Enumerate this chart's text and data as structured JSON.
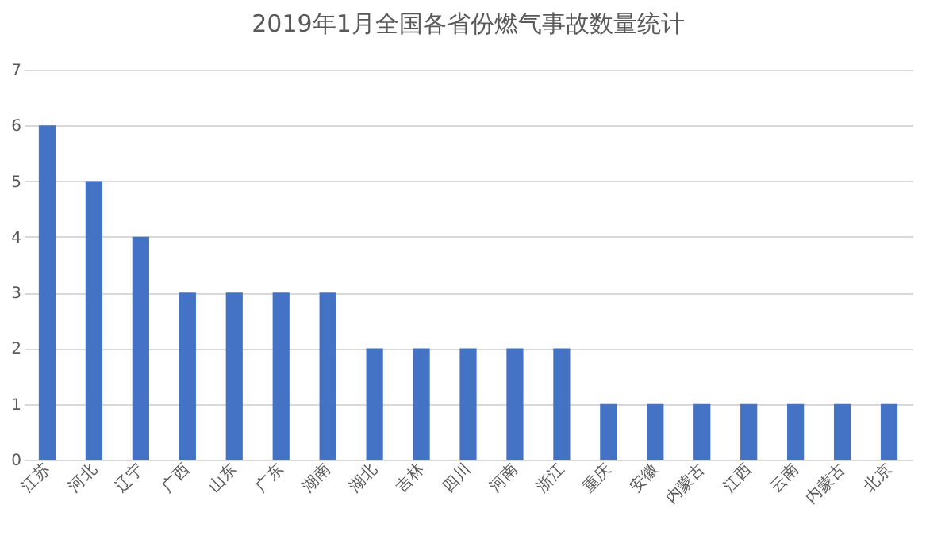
{
  "chart_data": {
    "type": "bar",
    "title": "2019年1月全国各省份燃气事故数量统计",
    "categories": [
      "江苏",
      "河北",
      "辽宁",
      "广西",
      "山东",
      "广东",
      "湖南",
      "湖北",
      "吉林",
      "四川",
      "河南",
      "浙江",
      "重庆",
      "安徽",
      "内蒙古",
      "江西",
      "云南",
      "内蒙古",
      "北京"
    ],
    "values": [
      6,
      5,
      4,
      3,
      3,
      3,
      3,
      2,
      2,
      2,
      2,
      2,
      1,
      1,
      1,
      1,
      1,
      1,
      1
    ],
    "color": "#4472c4",
    "ylim": [
      0,
      7
    ],
    "yticks": [
      0,
      1,
      2,
      3,
      4,
      5,
      6,
      7
    ],
    "grid": "y"
  }
}
